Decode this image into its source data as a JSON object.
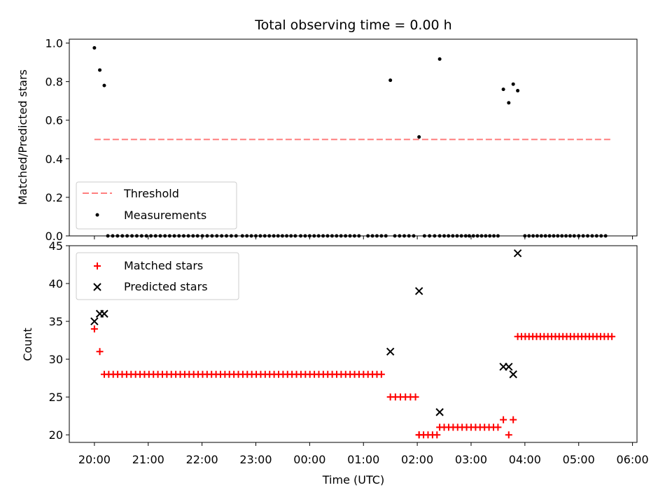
{
  "chart_data": [
    {
      "type": "scatter",
      "title": "Total observing time = 0.00 h",
      "xlabel": "",
      "ylabel": "Matched/Predicted stars",
      "xlim": [
        "19:32",
        "30:05"
      ],
      "ylim": [
        0,
        1.02
      ],
      "yticks": [
        "0.0",
        "0.2",
        "0.4",
        "0.6",
        "0.8",
        "1.0"
      ],
      "grid": false,
      "legend_position": "lower-left",
      "threshold": {
        "name": "Threshold",
        "y": 0.5,
        "x_range": [
          "20:00",
          "29:37"
        ],
        "color": "#ff7f7f",
        "style": "dashed"
      },
      "series": [
        {
          "name": "Measurements",
          "color": "#000000",
          "marker": "dot",
          "points": [
            [
              "20:00",
              0.975
            ],
            [
              "20:06",
              0.86
            ],
            [
              "20:11",
              0.78
            ],
            [
              "25:30",
              0.807
            ],
            [
              "26:02",
              0.513
            ],
            [
              "26:25",
              0.917
            ],
            [
              "27:36",
              0.76
            ],
            [
              "27:42",
              0.69
            ],
            [
              "27:47",
              0.787
            ],
            [
              "27:52",
              0.753
            ]
          ],
          "zero_runs": [
            [
              "20:15",
              "20:58",
              9
            ],
            [
              "21:03",
              "21:50",
              10
            ],
            [
              "21:55",
              "22:38",
              9
            ],
            [
              "22:45",
              "23:15",
              7
            ],
            [
              "23:20",
              "23:44",
              6
            ],
            [
              "23:50",
              "24:55",
              14
            ],
            [
              "25:05",
              "25:25",
              5
            ],
            [
              "25:35",
              "25:56",
              5
            ],
            [
              "26:08",
              "26:25",
              4
            ],
            [
              "26:30",
              "26:54",
              6
            ],
            [
              "26:58",
              "27:30",
              8
            ],
            [
              "28:00",
              "28:55",
              13
            ],
            [
              "29:00",
              "29:30",
              7
            ]
          ]
        }
      ]
    },
    {
      "type": "scatter",
      "title": "",
      "xlabel": "Time (UTC)",
      "ylabel": "Count",
      "xlim": [
        "19:32",
        "30:05"
      ],
      "ylim": [
        19,
        45
      ],
      "yticks": [
        "20",
        "25",
        "30",
        "35",
        "40",
        "45"
      ],
      "xticks": [
        "20:00",
        "21:00",
        "22:00",
        "23:00",
        "00:00",
        "01:00",
        "02:00",
        "03:00",
        "04:00",
        "05:00",
        "06:00"
      ],
      "grid": false,
      "legend_position": "upper-left",
      "series": [
        {
          "name": "Matched stars",
          "color": "#ff0000",
          "marker": "plus",
          "points": [
            [
              "20:00",
              34
            ],
            [
              "20:06",
              31
            ],
            [
              "26:02",
              20
            ],
            [
              "27:36",
              22
            ],
            [
              "27:42",
              20
            ],
            [
              "27:47",
              22
            ]
          ],
          "runs": [
            [
              "20:11",
              "25:20",
              28,
              63
            ],
            [
              "25:30",
              "25:58",
              25,
              6
            ],
            [
              "26:02",
              "26:22",
              20,
              5
            ],
            [
              "26:25",
              "27:30",
              21,
              14
            ],
            [
              "27:52",
              "29:37",
              33,
              26
            ]
          ]
        },
        {
          "name": "Predicted stars",
          "color": "#000000",
          "marker": "x",
          "points": [
            [
              "20:00",
              35
            ],
            [
              "20:06",
              36
            ],
            [
              "20:11",
              36
            ],
            [
              "25:30",
              31
            ],
            [
              "26:02",
              39
            ],
            [
              "26:25",
              23
            ],
            [
              "27:36",
              29
            ],
            [
              "27:42",
              29
            ],
            [
              "27:47",
              28
            ],
            [
              "27:52",
              44
            ]
          ]
        }
      ]
    }
  ]
}
